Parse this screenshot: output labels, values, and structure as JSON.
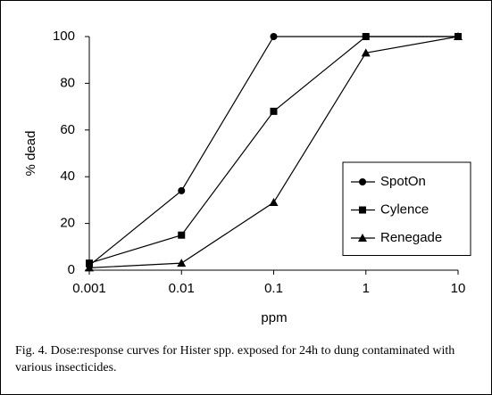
{
  "chart_data": {
    "type": "line",
    "x_scale": "log",
    "xlabel": "ppm",
    "ylabel": "% dead",
    "x": [
      0.001,
      0.01,
      0.1,
      1,
      10
    ],
    "xlim": [
      0.001,
      10
    ],
    "xticks": [
      0.001,
      0.01,
      0.1,
      1,
      10
    ],
    "ylim": [
      0,
      100
    ],
    "yticks": [
      0,
      20,
      40,
      60,
      80,
      100
    ],
    "grid": false,
    "legend_position": "right",
    "series": [
      {
        "name": "SpotOn",
        "color": "#000000",
        "marker": "circle",
        "values": [
          2,
          34,
          100,
          100,
          100
        ]
      },
      {
        "name": "Cylence",
        "color": "#000000",
        "marker": "square",
        "values": [
          3,
          15,
          68,
          100,
          100
        ]
      },
      {
        "name": "Renegade",
        "color": "#000000",
        "marker": "triangle",
        "values": [
          1,
          3,
          29,
          93,
          100
        ]
      }
    ],
    "caption": "Fig. 4. Dose:response curves for Hister spp. exposed for 24h to dung contaminated with various insecticides."
  }
}
